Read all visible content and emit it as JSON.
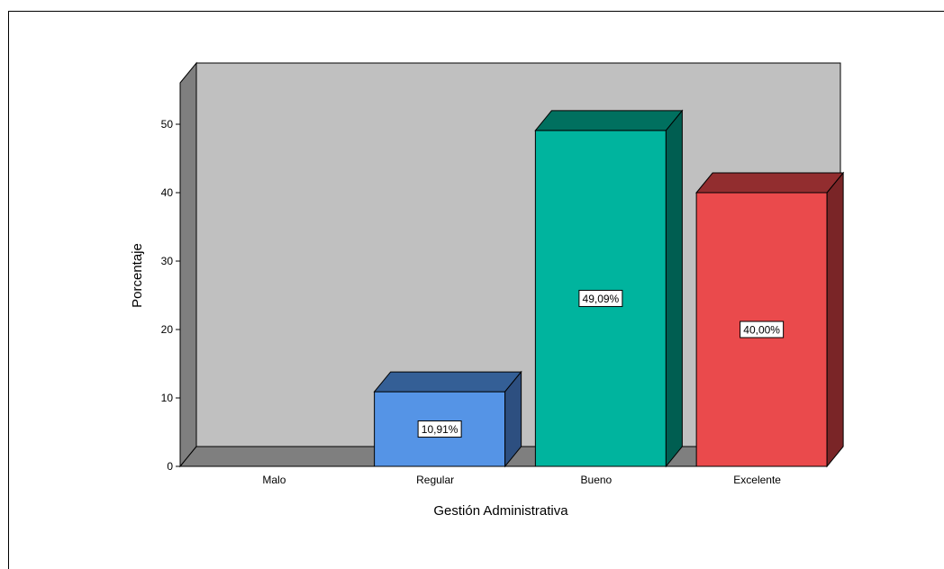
{
  "chart_data": {
    "type": "bar",
    "categories": [
      "Malo",
      "Regular",
      "Bueno",
      "Excelente"
    ],
    "values": [
      0,
      10.91,
      49.09,
      40.0
    ],
    "data_labels": [
      "",
      "10,91%",
      "49,09%",
      "40,00%"
    ],
    "colors": [
      "#5594e6",
      "#5594e6",
      "#00b49e",
      "#ea4a4c"
    ],
    "top_colors": [
      "#345f96",
      "#345f96",
      "#00705f",
      "#922d2f"
    ],
    "side_colors": [
      "#2d4f80",
      "#2d4f80",
      "#005e51",
      "#7a2527"
    ],
    "xlabel": "Gestión Administrativa",
    "ylabel": "Porcentaje",
    "ylim": [
      0,
      50
    ],
    "yticks": [
      0,
      10,
      20,
      30,
      40,
      50
    ],
    "three_d": true,
    "grid": false,
    "legend": "none",
    "wall_color": "#c0c0c0",
    "side_wall_color": "#7f7f7f"
  }
}
